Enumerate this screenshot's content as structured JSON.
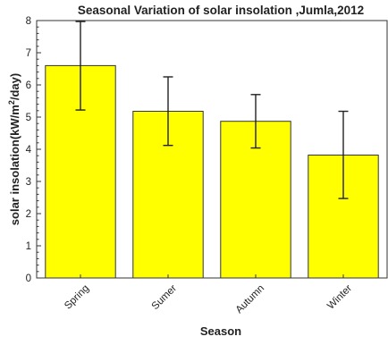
{
  "chart_data": {
    "type": "bar",
    "title": "Seasonal Variation of solar insolation ,Jumla,2012",
    "xlabel": "Season",
    "ylabel_main": "solar insolation(kW/m",
    "ylabel_sup": "2",
    "ylabel_end": "/day)",
    "categories": [
      "Spring",
      "Sumer",
      "Autumn",
      "Winter"
    ],
    "values": [
      6.6,
      5.18,
      4.87,
      3.82
    ],
    "error_low": [
      5.22,
      4.12,
      4.04,
      2.47
    ],
    "error_high": [
      7.97,
      6.25,
      5.7,
      5.18
    ],
    "ylim": [
      0,
      8
    ],
    "yticks": [
      "0",
      "1",
      "2",
      "3",
      "4",
      "5",
      "6",
      "7",
      "8"
    ],
    "bar_color": "#ffff00",
    "bar_edge_color": "#333333",
    "error_color": "#222222",
    "grid": false,
    "legend": "none"
  }
}
